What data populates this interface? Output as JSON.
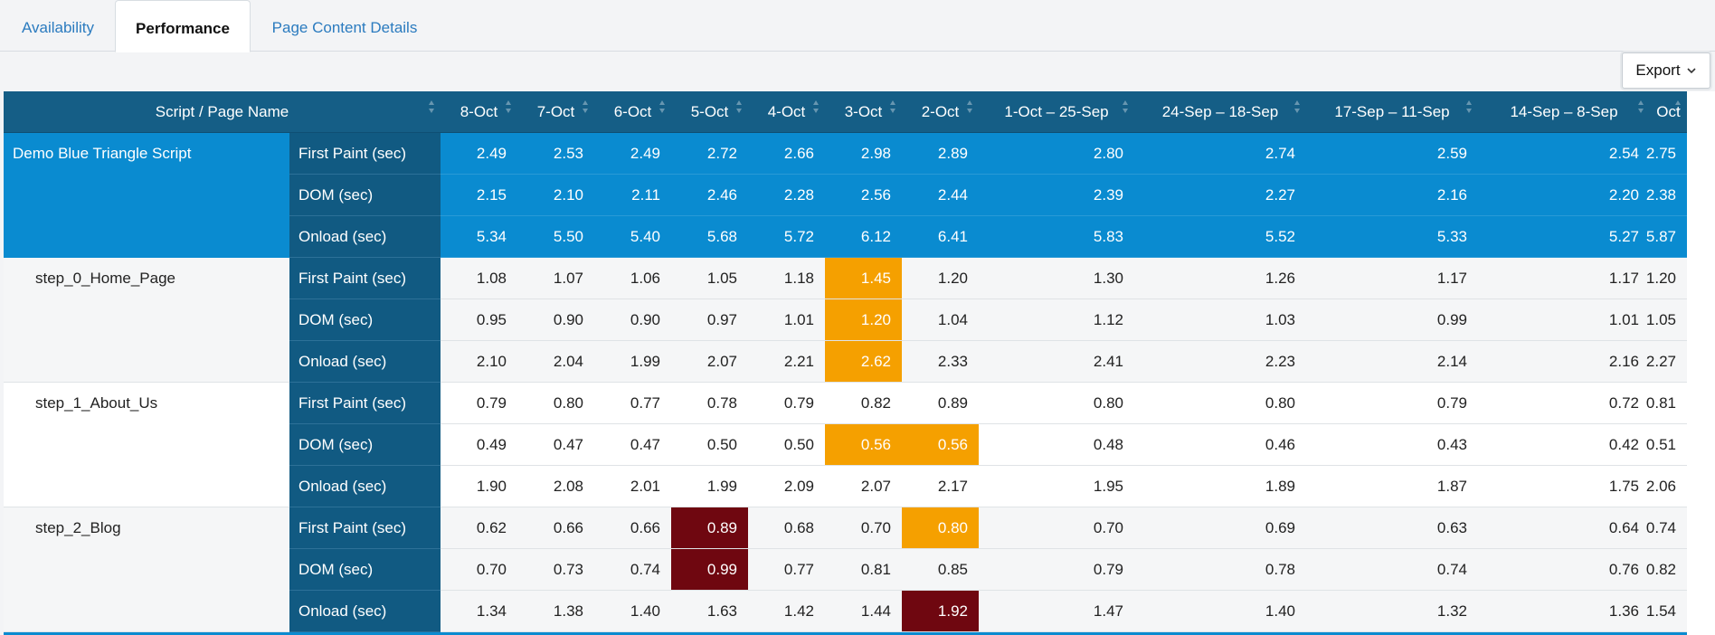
{
  "tabs": [
    {
      "label": "Availability",
      "active": false
    },
    {
      "label": "Performance",
      "active": true
    },
    {
      "label": "Page Content Details",
      "active": false
    }
  ],
  "toolbar": {
    "export_label": "Export"
  },
  "table": {
    "headers": [
      "Script / Page Name",
      "8-Oct",
      "7-Oct",
      "6-Oct",
      "5-Oct",
      "4-Oct",
      "3-Oct",
      "2-Oct",
      "1-Oct – 25-Sep",
      "24-Sep – 18-Sep",
      "17-Sep – 11-Sep",
      "14-Sep – 8-Sep",
      "Oct"
    ],
    "groups": [
      {
        "name": "Demo Blue Triangle Script",
        "summary": true,
        "rows": [
          {
            "metric": "First Paint (sec)",
            "values": [
              "2.49",
              "2.53",
              "2.49",
              "2.72",
              "2.66",
              "2.98",
              "2.89",
              "2.80",
              "2.74",
              "2.59",
              "2.54",
              "2.75"
            ],
            "highlights": []
          },
          {
            "metric": "DOM (sec)",
            "values": [
              "2.15",
              "2.10",
              "2.11",
              "2.46",
              "2.28",
              "2.56",
              "2.44",
              "2.39",
              "2.27",
              "2.16",
              "2.20",
              "2.38"
            ],
            "highlights": []
          },
          {
            "metric": "Onload (sec)",
            "values": [
              "5.34",
              "5.50",
              "5.40",
              "5.68",
              "5.72",
              "6.12",
              "6.41",
              "5.83",
              "5.52",
              "5.33",
              "5.27",
              "5.87"
            ],
            "highlights": []
          }
        ]
      },
      {
        "name": "step_0_Home_Page",
        "summary": false,
        "rows": [
          {
            "metric": "First Paint (sec)",
            "values": [
              "1.08",
              "1.07",
              "1.06",
              "1.05",
              "1.18",
              "1.45",
              "1.20",
              "1.30",
              "1.26",
              "1.17",
              "1.17",
              "1.20"
            ],
            "highlights": [
              {
                "col": 5,
                "level": "orange"
              }
            ]
          },
          {
            "metric": "DOM (sec)",
            "values": [
              "0.95",
              "0.90",
              "0.90",
              "0.97",
              "1.01",
              "1.20",
              "1.04",
              "1.12",
              "1.03",
              "0.99",
              "1.01",
              "1.05"
            ],
            "highlights": [
              {
                "col": 5,
                "level": "orange"
              }
            ]
          },
          {
            "metric": "Onload (sec)",
            "values": [
              "2.10",
              "2.04",
              "1.99",
              "2.07",
              "2.21",
              "2.62",
              "2.33",
              "2.41",
              "2.23",
              "2.14",
              "2.16",
              "2.27"
            ],
            "highlights": [
              {
                "col": 5,
                "level": "orange"
              }
            ]
          }
        ]
      },
      {
        "name": "step_1_About_Us",
        "summary": false,
        "rows": [
          {
            "metric": "First Paint (sec)",
            "values": [
              "0.79",
              "0.80",
              "0.77",
              "0.78",
              "0.79",
              "0.82",
              "0.89",
              "0.80",
              "0.80",
              "0.79",
              "0.72",
              "0.81"
            ],
            "highlights": []
          },
          {
            "metric": "DOM (sec)",
            "values": [
              "0.49",
              "0.47",
              "0.47",
              "0.50",
              "0.50",
              "0.56",
              "0.56",
              "0.48",
              "0.46",
              "0.43",
              "0.42",
              "0.51"
            ],
            "highlights": [
              {
                "col": 5,
                "level": "orange"
              },
              {
                "col": 6,
                "level": "orange"
              }
            ]
          },
          {
            "metric": "Onload (sec)",
            "values": [
              "1.90",
              "2.08",
              "2.01",
              "1.99",
              "2.09",
              "2.07",
              "2.17",
              "1.95",
              "1.89",
              "1.87",
              "1.75",
              "2.06"
            ],
            "highlights": []
          }
        ]
      },
      {
        "name": "step_2_Blog",
        "summary": false,
        "rows": [
          {
            "metric": "First Paint (sec)",
            "values": [
              "0.62",
              "0.66",
              "0.66",
              "0.89",
              "0.68",
              "0.70",
              "0.80",
              "0.70",
              "0.69",
              "0.63",
              "0.64",
              "0.74"
            ],
            "highlights": [
              {
                "col": 3,
                "level": "red"
              },
              {
                "col": 6,
                "level": "orange"
              }
            ]
          },
          {
            "metric": "DOM (sec)",
            "values": [
              "0.70",
              "0.73",
              "0.74",
              "0.99",
              "0.77",
              "0.81",
              "0.85",
              "0.79",
              "0.78",
              "0.74",
              "0.76",
              "0.82"
            ],
            "highlights": [
              {
                "col": 3,
                "level": "red"
              }
            ]
          },
          {
            "metric": "Onload (sec)",
            "values": [
              "1.34",
              "1.38",
              "1.40",
              "1.63",
              "1.42",
              "1.44",
              "1.92",
              "1.47",
              "1.40",
              "1.32",
              "1.36",
              "1.54"
            ],
            "highlights": [
              {
                "col": 6,
                "level": "red"
              }
            ]
          }
        ]
      }
    ]
  },
  "colors": {
    "header_bg": "#155e86",
    "summary_bg": "#0a8bd0",
    "metric_bg": "#115a82",
    "warning": "#f5a000",
    "critical": "#6f0710",
    "link": "#2b7bbf"
  },
  "icons": {
    "sort": "sort-icon",
    "export": "chevron-down-icon"
  }
}
